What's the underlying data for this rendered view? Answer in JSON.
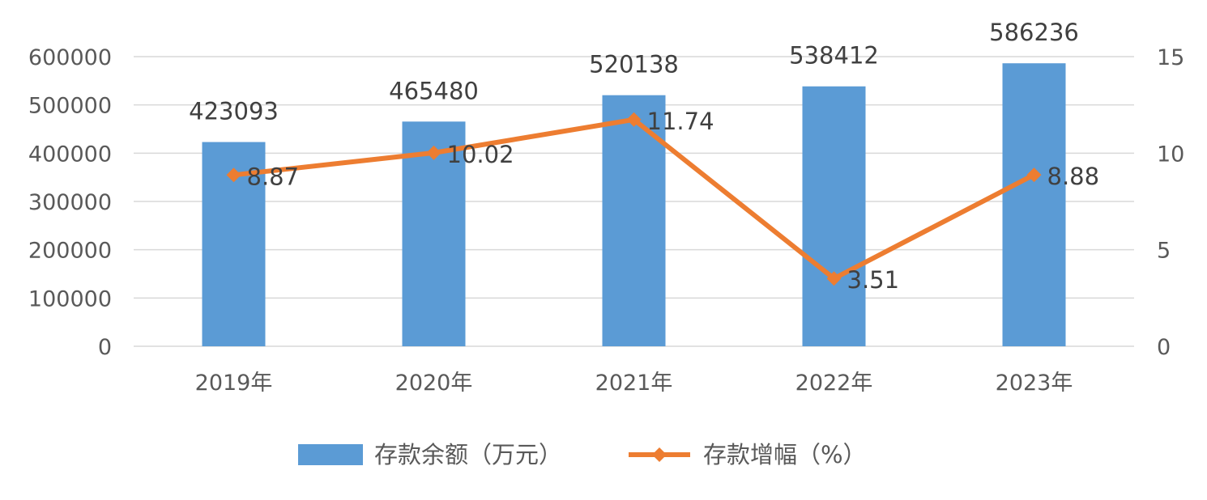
{
  "chart_data": {
    "type": "bar",
    "categories": [
      "2019年",
      "2020年",
      "2021年",
      "2022年",
      "2023年"
    ],
    "series": [
      {
        "name": "存款余额（万元）",
        "type": "bar",
        "axis": "left",
        "color": "#5b9bd5",
        "values": [
          423093,
          465480,
          520138,
          538412,
          586236
        ]
      },
      {
        "name": "存款增幅（%）",
        "type": "line",
        "axis": "right",
        "color": "#ed7d31",
        "marker": "diamond",
        "values": [
          8.87,
          10.02,
          11.74,
          3.51,
          8.88
        ]
      }
    ],
    "y_left": {
      "ylim": [
        0,
        600000
      ],
      "ticks": [
        "0",
        "100000",
        "200000",
        "300000",
        "400000",
        "500000",
        "600000"
      ]
    },
    "y_right": {
      "ylim": [
        0,
        15
      ],
      "ticks": [
        "0",
        "5",
        "10",
        "15"
      ]
    },
    "grid": true,
    "legend": "bottom"
  }
}
